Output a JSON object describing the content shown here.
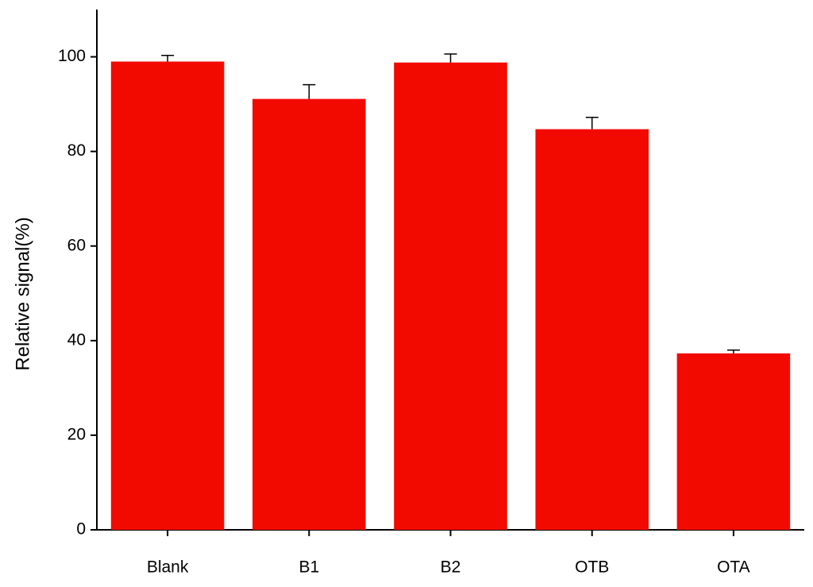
{
  "chart_data": {
    "type": "bar",
    "y_label": "Relative signal(%)",
    "categories": [
      "Blank",
      "B1",
      "B2",
      "OTB",
      "OTA"
    ],
    "values": [
      99.0,
      91.1,
      98.8,
      84.7,
      37.3
    ],
    "errors": [
      1.3,
      3.0,
      1.8,
      2.5,
      0.7
    ],
    "color": "#f20a00",
    "ylim": [
      0,
      110
    ],
    "yticks": [
      0,
      20,
      40,
      60,
      80,
      100
    ],
    "grid": false
  }
}
